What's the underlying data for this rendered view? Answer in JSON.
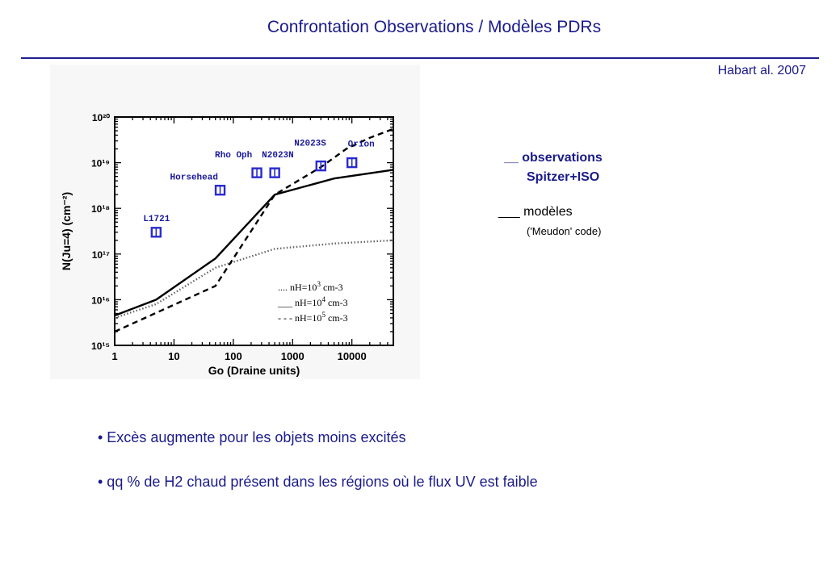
{
  "slide": {
    "title": "Confrontation Observations / Modèles PDRs",
    "reference": "Habart al. 2007",
    "legend_obs_line1": "__ observations",
    "legend_obs_line2": "Spitzer+ISO",
    "legend_mod_line1": "___ modèles",
    "legend_mod_line2": "('Meudon' code)",
    "bullets": [
      "• Excès augmente pour les objets moins excités",
      "• qq % de H2 chaud présent dans les régions où le flux UV est faible"
    ]
  },
  "chart_data": {
    "type": "scatter",
    "xlabel": "Go (Draine units)",
    "ylabel": "N(Ju=4) (cm⁻²)",
    "xscale": "log",
    "yscale": "log",
    "xlim": [
      1,
      50000
    ],
    "ylim": [
      1000000000000000.0,
      1e+20
    ],
    "x_ticks": [
      "1",
      "10",
      "100",
      "1000",
      "10000"
    ],
    "y_ticks": [
      "10¹⁵",
      "10¹⁶",
      "10¹⁷",
      "10¹⁸",
      "10¹⁹",
      "10²⁰"
    ],
    "observations": [
      {
        "label": "L1721",
        "x": 5,
        "y": 3e+17
      },
      {
        "label": "Horsehead",
        "x": 60,
        "y": 2.5e+18
      },
      {
        "label": "Rho Oph",
        "x": 250,
        "y": 6e+18
      },
      {
        "label": "N2023N",
        "x": 500,
        "y": 6e+18
      },
      {
        "label": "N2023S",
        "x": 3000,
        "y": 8.5e+18
      },
      {
        "label": "Orion",
        "x": 10000,
        "y": 1e+19
      }
    ],
    "models": [
      {
        "name": "nH=10³ cm⁻³",
        "legend": {
          "sample": "....",
          "pre": "nH=10",
          "exp": "3",
          "unit": " cm-3"
        },
        "style": "dotted",
        "x": [
          1,
          5,
          50,
          500,
          5000,
          50000
        ],
        "y": [
          4000000000000000.0,
          8000000000000000.0,
          5e+16,
          1.3e+17,
          1.7e+17,
          2e+17
        ]
      },
      {
        "name": "nH=10⁴ cm⁻³",
        "legend": {
          "sample": "___",
          "pre": "nH=10",
          "exp": "4",
          "unit": " cm-3"
        },
        "style": "solid",
        "x": [
          1,
          5,
          50,
          500,
          5000,
          50000
        ],
        "y": [
          4500000000000000.0,
          1e+16,
          8e+16,
          2e+18,
          4.5e+18,
          7e+18
        ]
      },
      {
        "name": "nH=10⁵ cm⁻³",
        "legend": {
          "sample": "- - -",
          "pre": "nH=10",
          "exp": "5",
          "unit": " cm-3"
        },
        "style": "dashed",
        "x": [
          1,
          50,
          500,
          3000,
          8000,
          20000,
          50000
        ],
        "y": [
          2000000000000000.0,
          2e+16,
          2e+18,
          8e+18,
          2e+19,
          3.5e+19,
          5.5e+19
        ]
      }
    ]
  }
}
